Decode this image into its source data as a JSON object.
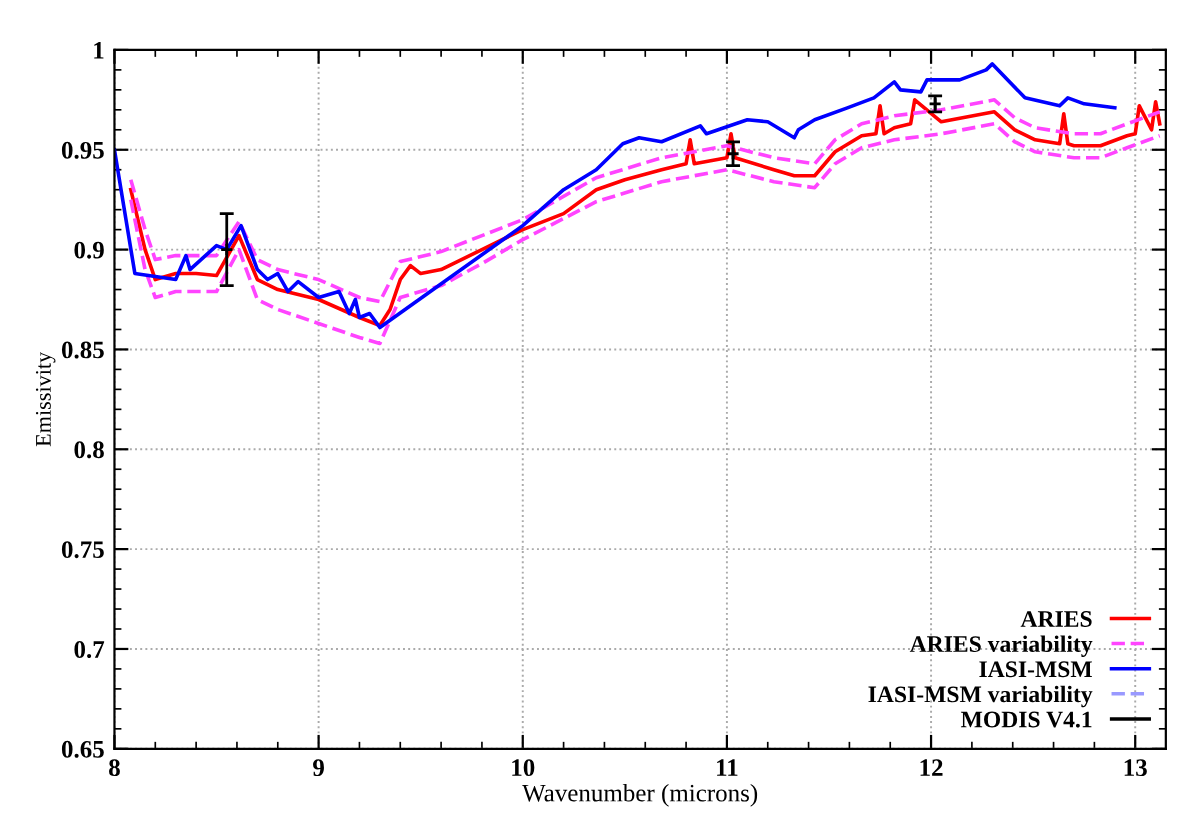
{
  "chart_data": {
    "type": "line",
    "xlabel": "Wavenumber (microns)",
    "ylabel": "Emissivity",
    "xlim": [
      8,
      13.15
    ],
    "ylim": [
      0.65,
      1
    ],
    "xticks": [
      8,
      9,
      10,
      11,
      12,
      13
    ],
    "yticks": [
      0.65,
      0.7,
      0.75,
      0.8,
      0.85,
      0.9,
      0.95,
      1
    ],
    "grid": true,
    "legend": "bottom right",
    "series": [
      {
        "name": "ARIES",
        "color": "#ff0000",
        "line_style": "solid",
        "x": [
          8.08,
          8.15,
          8.2,
          8.3,
          8.4,
          8.5,
          8.61,
          8.7,
          8.8,
          9.0,
          9.2,
          9.3,
          9.35,
          9.4,
          9.45,
          9.5,
          9.6,
          9.8,
          10.0,
          10.2,
          10.36,
          10.5,
          10.68,
          10.8,
          10.82,
          10.84,
          11.0,
          11.02,
          11.04,
          11.23,
          11.33,
          11.43,
          11.53,
          11.66,
          11.73,
          11.75,
          11.77,
          11.82,
          11.9,
          11.92,
          12.05,
          12.31,
          12.41,
          12.51,
          12.63,
          12.65,
          12.67,
          12.7,
          12.83,
          12.96,
          13.0,
          13.02,
          13.08,
          13.1,
          13.12
        ],
        "values": [
          0.93,
          0.9,
          0.885,
          0.888,
          0.888,
          0.887,
          0.907,
          0.885,
          0.88,
          0.875,
          0.866,
          0.862,
          0.87,
          0.885,
          0.892,
          0.888,
          0.89,
          0.9,
          0.91,
          0.918,
          0.93,
          0.935,
          0.94,
          0.943,
          0.955,
          0.943,
          0.946,
          0.958,
          0.946,
          0.94,
          0.937,
          0.937,
          0.949,
          0.957,
          0.958,
          0.972,
          0.958,
          0.961,
          0.963,
          0.975,
          0.964,
          0.969,
          0.96,
          0.955,
          0.953,
          0.968,
          0.953,
          0.952,
          0.952,
          0.957,
          0.958,
          0.972,
          0.96,
          0.974,
          0.963
        ]
      },
      {
        "name": "ARIES variability",
        "color": "#ff44ff",
        "line_style": "dashed",
        "x": [
          8.08,
          8.15,
          8.2,
          8.3,
          8.5,
          8.61,
          8.7,
          8.8,
          9.0,
          9.2,
          9.3,
          9.4,
          9.6,
          9.8,
          10.0,
          10.36,
          10.68,
          11.0,
          11.23,
          11.43,
          11.53,
          11.66,
          11.82,
          12.05,
          12.31,
          12.41,
          12.51,
          12.7,
          12.83,
          12.96,
          13.12
        ],
        "values": [
          0.935,
          0.91,
          0.895,
          0.897,
          0.897,
          0.914,
          0.895,
          0.89,
          0.885,
          0.876,
          0.874,
          0.894,
          0.899,
          0.907,
          0.915,
          0.936,
          0.946,
          0.952,
          0.946,
          0.943,
          0.955,
          0.963,
          0.967,
          0.97,
          0.975,
          0.966,
          0.961,
          0.958,
          0.958,
          0.963,
          0.969
        ]
      },
      {
        "color": "#ff44ff",
        "line_style": "dashed",
        "x": [
          8.08,
          8.15,
          8.2,
          8.3,
          8.5,
          8.61,
          8.7,
          8.8,
          9.0,
          9.2,
          9.3,
          9.4,
          9.6,
          9.8,
          10.0,
          10.36,
          10.68,
          11.0,
          11.23,
          11.43,
          11.53,
          11.66,
          11.82,
          12.05,
          12.31,
          12.41,
          12.51,
          12.7,
          12.83,
          12.96,
          13.12
        ],
        "values": [
          0.925,
          0.89,
          0.876,
          0.879,
          0.879,
          0.9,
          0.875,
          0.87,
          0.863,
          0.856,
          0.853,
          0.876,
          0.882,
          0.893,
          0.905,
          0.924,
          0.934,
          0.94,
          0.934,
          0.931,
          0.943,
          0.951,
          0.955,
          0.958,
          0.963,
          0.954,
          0.949,
          0.946,
          0.946,
          0.951,
          0.957
        ]
      },
      {
        "name": "IASI-MSM",
        "color": "#0000ff",
        "line_style": "solid",
        "x": [
          8.0,
          8.1,
          8.3,
          8.35,
          8.37,
          8.5,
          8.55,
          8.62,
          8.7,
          8.75,
          8.8,
          8.85,
          8.9,
          9.0,
          9.1,
          9.15,
          9.18,
          9.2,
          9.25,
          9.3,
          10.0,
          10.2,
          10.36,
          10.49,
          10.57,
          10.68,
          10.87,
          10.9,
          11.1,
          11.2,
          11.33,
          11.35,
          11.43,
          11.59,
          11.72,
          11.82,
          11.85,
          11.95,
          11.98,
          12.14,
          12.27,
          12.3,
          12.46,
          12.63,
          12.67,
          12.75,
          12.9
        ],
        "values": [
          0.95,
          0.888,
          0.885,
          0.897,
          0.89,
          0.902,
          0.9,
          0.912,
          0.89,
          0.885,
          0.888,
          0.879,
          0.884,
          0.876,
          0.879,
          0.868,
          0.875,
          0.866,
          0.868,
          0.861,
          0.912,
          0.93,
          0.94,
          0.953,
          0.956,
          0.954,
          0.962,
          0.958,
          0.965,
          0.964,
          0.956,
          0.96,
          0.965,
          0.971,
          0.976,
          0.984,
          0.98,
          0.979,
          0.985,
          0.985,
          0.99,
          0.993,
          0.976,
          0.972,
          0.976,
          0.973,
          0.971
        ]
      },
      {
        "name": "IASI-MSM variability",
        "color": "#9999ff",
        "line_style": "dashed"
      },
      {
        "name": "MODIS V4.1",
        "type": "scatter",
        "color": "#000000",
        "x": [
          8.55,
          11.03,
          12.02
        ],
        "values": [
          0.9,
          0.948,
          0.973
        ],
        "errors": [
          0.018,
          0.006,
          0.004
        ]
      }
    ]
  }
}
